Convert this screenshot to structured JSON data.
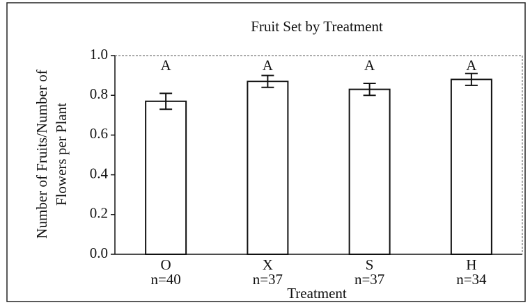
{
  "chart_data": {
    "type": "bar",
    "title": "Fruit Set by Treatment",
    "x_label": "Treatment",
    "y_label": [
      "Number of Fruits/Number of",
      "Flowers per Plant"
    ],
    "categories": [
      "O",
      "X",
      "S",
      "H"
    ],
    "sample_sizes": [
      "n=40",
      "n=37",
      "n=37",
      "n=34"
    ],
    "values": [
      0.77,
      0.87,
      0.83,
      0.88
    ],
    "errors": [
      0.04,
      0.03,
      0.03,
      0.03
    ],
    "annotations": [
      "A",
      "A",
      "A",
      "A"
    ],
    "color": "#ffffff",
    "ylim": [
      0,
      1
    ],
    "yticks": [
      {
        "value": 0,
        "label": "0.0"
      },
      0.2,
      0.4,
      0.6,
      0.8,
      {
        "value": 1,
        "label": "1.0"
      }
    ]
  }
}
